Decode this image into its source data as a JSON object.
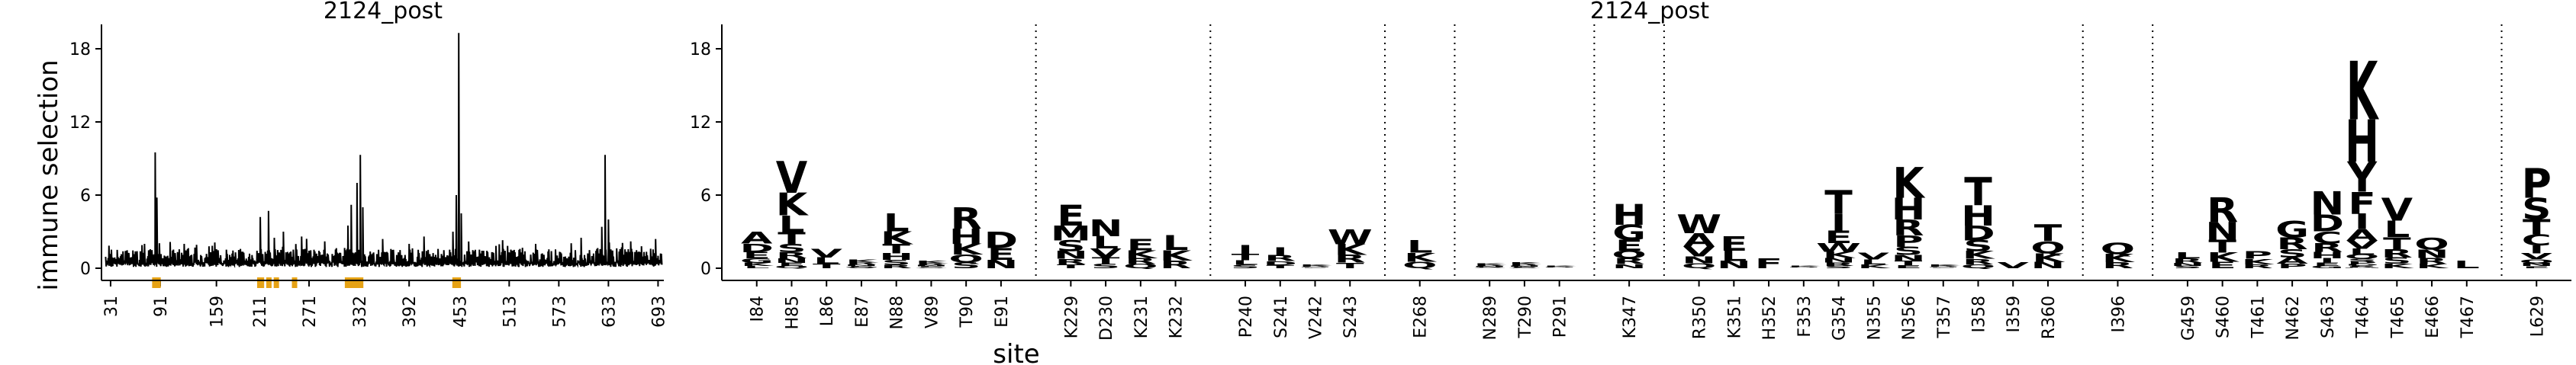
{
  "chart_data": [
    {
      "type": "line",
      "title": "2124_post",
      "ylabel": "immune selection",
      "xlabel": "",
      "y_ticks": [
        0,
        6,
        12,
        18
      ],
      "ylim": [
        -1,
        20
      ],
      "x_tick_labels": [
        "31",
        "91",
        "159",
        "211",
        "271",
        "332",
        "392",
        "453",
        "513",
        "573",
        "633",
        "693"
      ],
      "xlim": [
        20,
        700
      ],
      "series_color": "#000000",
      "peaks": [
        {
          "x": 85,
          "y": 9.5
        },
        {
          "x": 87,
          "y": 5.8
        },
        {
          "x": 120,
          "y": 2.0
        },
        {
          "x": 150,
          "y": 1.8
        },
        {
          "x": 212,
          "y": 4.2
        },
        {
          "x": 222,
          "y": 4.7
        },
        {
          "x": 229,
          "y": 2.5
        },
        {
          "x": 240,
          "y": 3.0
        },
        {
          "x": 262,
          "y": 2.6
        },
        {
          "x": 290,
          "y": 2.2
        },
        {
          "x": 318,
          "y": 3.5
        },
        {
          "x": 322,
          "y": 5.2
        },
        {
          "x": 329,
          "y": 7.0
        },
        {
          "x": 333,
          "y": 9.3
        },
        {
          "x": 336,
          "y": 5.0
        },
        {
          "x": 360,
          "y": 2.4
        },
        {
          "x": 392,
          "y": 2.0
        },
        {
          "x": 410,
          "y": 2.6
        },
        {
          "x": 445,
          "y": 3.0
        },
        {
          "x": 449,
          "y": 6.0
        },
        {
          "x": 452,
          "y": 19.3
        },
        {
          "x": 455,
          "y": 4.5
        },
        {
          "x": 505,
          "y": 2.3
        },
        {
          "x": 545,
          "y": 2.0
        },
        {
          "x": 600,
          "y": 2.5
        },
        {
          "x": 625,
          "y": 3.4
        },
        {
          "x": 629,
          "y": 9.3
        },
        {
          "x": 633,
          "y": 4.0
        },
        {
          "x": 660,
          "y": 2.2
        },
        {
          "x": 690,
          "y": 2.4
        }
      ],
      "highlight_markers": [
        84,
        86,
        88,
        211,
        213,
        222,
        231,
        253,
        317,
        321,
        325,
        327,
        331,
        333,
        447,
        451
      ],
      "marker_color": "#e6a215"
    },
    {
      "type": "logo",
      "title": "2124_post",
      "xlabel": "site",
      "y_ticks": [
        0,
        6,
        12,
        18
      ],
      "ylim": [
        -1,
        20
      ],
      "groups": [
        [
          "I84",
          "H85",
          "L86",
          "E87",
          "N88",
          "V89",
          "T90",
          "E91"
        ],
        [
          "K229",
          "D230",
          "K231",
          "K232"
        ],
        [
          "P240",
          "S241",
          "V242",
          "S243"
        ],
        [
          "E268"
        ],
        [
          "N289",
          "T290",
          "P291"
        ],
        [
          "K347"
        ],
        [
          "R350",
          "K351",
          "H352",
          "F353",
          "G354",
          "N355",
          "N356",
          "T357",
          "I358",
          "I359",
          "R360"
        ],
        [
          "I396"
        ],
        [
          "G459",
          "S460",
          "T461",
          "N462",
          "S463",
          "T464",
          "T465",
          "E466",
          "T467"
        ],
        [
          "L629"
        ]
      ],
      "site_heights": {
        "I84": 3.0,
        "H85": 8.8,
        "L86": 1.6,
        "E87": 0.7,
        "N88": 4.5,
        "V89": 0.6,
        "T90": 5.0,
        "E91": 3.0,
        "K229": 5.2,
        "D230": 4.0,
        "K231": 2.4,
        "K232": 2.7,
        "P240": 1.9,
        "S241": 1.7,
        "V242": 0.3,
        "S243": 3.2,
        "E268": 2.3,
        "N289": 0.4,
        "T290": 0.5,
        "P291": 0.2,
        "K347": 5.3,
        "R350": 4.4,
        "K351": 2.6,
        "H352": 0.8,
        "F353": 0.2,
        "G354": 6.4,
        "N355": 1.3,
        "N356": 8.3,
        "T357": 0.3,
        "I358": 7.5,
        "I359": 0.5,
        "R360": 3.6,
        "I396": 2.1,
        "G459": 1.3,
        "S460": 5.8,
        "T461": 1.4,
        "N462": 3.9,
        "S463": 6.3,
        "T464": 17.0,
        "T465": 5.8,
        "E466": 2.5,
        "T467": 0.6,
        "L629": 8.2
      },
      "site_letters": {
        "H85": "VKLTSRNEQ",
        "I84": "ADEGKL",
        "L86": "VLT",
        "N88": "LKTHSR",
        "T90": "RHKQS",
        "E91": "DEN",
        "K229": "EMSNRT",
        "D230": "NLVTS",
        "K231": "EKRQ",
        "K232": "LKR",
        "P240": "ITLS",
        "S241": "IRDT",
        "S243": "WKRT",
        "E268": "LKQ",
        "K347": "HGEQRN",
        "R350": "WAVNQ",
        "K351": "ELN",
        "H352": "F",
        "G354": "TIEWKNRS",
        "N355": "VLK",
        "N356": "KHRPSNTE",
        "I358": "THDSKRQ",
        "I359": "V",
        "R360": "TQKN",
        "I396": "QKR",
        "G459": "LRNS",
        "S460": "RNTKE",
        "T461": "PKR",
        "N462": "GRSAP",
        "S463": "NDCRHIEG",
        "T464": "KHYFIAVLQSPDERM",
        "T465": "VLTRSK",
        "E466": "QNRK",
        "T467": "L",
        "L629": "PSTCIVQNE"
      },
      "site_color_scheme": {
        "I84": "green",
        "H85": "green",
        "L86": "green",
        "E87": "green",
        "N88": "green",
        "V89": "green",
        "T90": "green",
        "E91": "green",
        "K229": "green",
        "D230": "green",
        "K231": "green",
        "K232": "green",
        "P240": "green",
        "S241": "green",
        "V242": "green",
        "S243": "green",
        "E268": "green",
        "N289": "green",
        "T290": "green",
        "P291": "green",
        "K347": "green",
        "R350": "blue",
        "K351": "blue",
        "H352": "blue",
        "F353": "blue",
        "G354": "blue",
        "N355": "blue",
        "N356": "blue",
        "T357": "blue",
        "I358": "blue",
        "I359": "blue",
        "R360": "blue",
        "I396": "blue",
        "G459": "blue",
        "S460": "blue",
        "T461": "blue",
        "N462": "blue",
        "S463": "blue",
        "T464": "blue",
        "T465": "blue",
        "E466": "blue",
        "T467": "blue",
        "L629": "green"
      },
      "colors": {
        "green": "#158a15",
        "blue": "#1515d8",
        "red": "#e01010"
      },
      "red_letters": {
        "I358": "T",
        "T465": "S"
      }
    }
  ]
}
